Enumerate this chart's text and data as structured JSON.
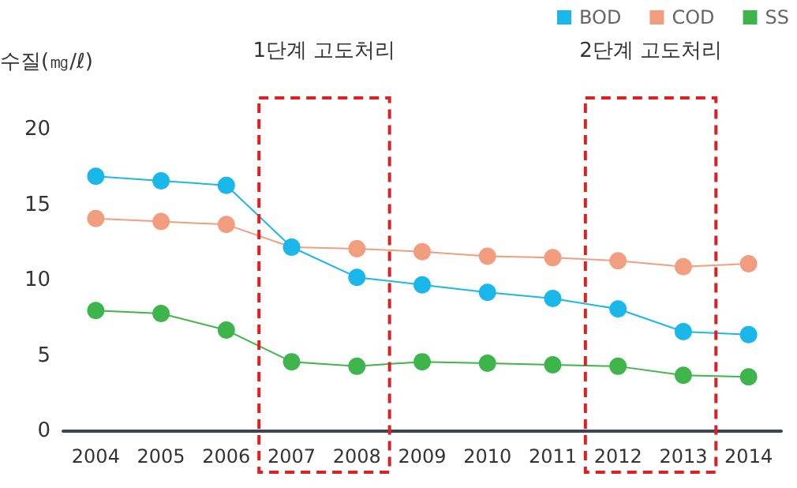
{
  "chart_data": {
    "type": "line",
    "ylabel": "수질(㎎/ℓ)",
    "categories": [
      "2004",
      "2005",
      "2006",
      "2007",
      "2008",
      "2009",
      "2010",
      "2011",
      "2012",
      "2013",
      "2014"
    ],
    "series": [
      {
        "name": "BOD",
        "color": "#1ab7ea",
        "values": [
          16.9,
          16.6,
          16.3,
          12.2,
          10.2,
          9.7,
          9.2,
          8.8,
          8.1,
          6.6,
          6.4
        ]
      },
      {
        "name": "COD",
        "color": "#f29e7e",
        "values": [
          14.1,
          13.9,
          13.7,
          12.2,
          12.1,
          11.9,
          11.6,
          11.5,
          11.3,
          10.9,
          11.1
        ]
      },
      {
        "name": "SS",
        "color": "#3db54a",
        "values": [
          8.0,
          7.8,
          6.7,
          4.6,
          4.3,
          4.6,
          4.5,
          4.4,
          4.3,
          3.7,
          3.6
        ]
      }
    ],
    "ylim": [
      0,
      20
    ],
    "yticks": [
      0,
      5,
      10,
      15,
      20
    ],
    "grid": false,
    "legend": "top right",
    "marker": "circle",
    "line_style": "solid",
    "bands": [
      {
        "axis": "x",
        "from": "2007",
        "to": "2008",
        "label": "1단계 고도처리",
        "color": "#e02020"
      },
      {
        "axis": "x",
        "from": "2012",
        "to": "2013",
        "label": "2단계 고도처리",
        "color": "#e02020"
      }
    ]
  }
}
